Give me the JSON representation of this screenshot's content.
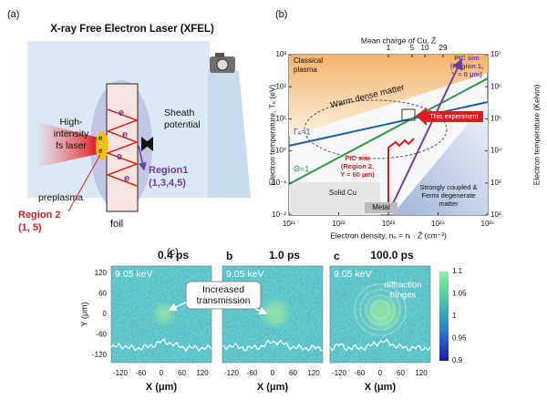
{
  "panel_a": {
    "label": "(a)",
    "title": "X-ray Free Electron Laser (XFEL)",
    "electron": "e",
    "laser": [
      "High-",
      "intensity",
      "fs laser"
    ],
    "sheath": [
      "Sheath",
      "potential"
    ],
    "region_1": [
      "Region1",
      "(1,3,4,5)"
    ],
    "preplasma": "preplasma",
    "region_2": [
      "Region 2",
      "(1, 5)"
    ],
    "foil": "foil"
  },
  "panel_b": {
    "label": "(b)",
    "top_axis_title": "Mean charge of Cu, Z̄",
    "top_ticks": [
      1,
      5,
      10,
      29
    ],
    "y_axis_title": "Electron temperature, Tₑ (eV)",
    "y_ticks": [
      "10³",
      "10²",
      "10¹",
      "10⁰",
      "10⁻¹",
      "10⁻²"
    ],
    "y2_axis_title": "Electron temperature (Kelvin)",
    "y2_ticks": [
      "10⁷",
      "10⁶",
      "10⁵",
      "10⁴",
      "10³",
      "10²"
    ],
    "x_axis_title": "Electron density, nₑ = nᵢ · Z̄ (cm⁻³)",
    "x_ticks": [
      "10²¹",
      "10²²",
      "10²³",
      "10²⁴",
      "10²⁵"
    ],
    "classical_plasma": [
      "Classical",
      "plasma"
    ],
    "warm_dense_matter": "Warm dense matter",
    "gamma_line": "Γₑ=1",
    "theta_line": "Θ=1",
    "pic_region_1": [
      "PIC sim",
      "(Region 1,",
      "Y = 0 μm)"
    ],
    "this_experiment": "This experiment",
    "pic_region_2": [
      "PIC sim",
      "(Region 2,",
      "Y = 60 μm)"
    ],
    "solid_cu": "Solid Cu",
    "metal": "Metal",
    "degenerate": [
      "Strongly coupled &",
      "Fermi degenerate",
      "matter"
    ]
  },
  "panel_c": {
    "label": "(c)",
    "letters": [
      "b",
      "c"
    ],
    "times": [
      "0.4 ps",
      "1.0 ps",
      "100.0 ps"
    ],
    "energy": "9.05 keV",
    "annotation": [
      "Increased",
      "transmission"
    ],
    "fringes": [
      "diffraction",
      "fringes"
    ],
    "y_title": "Y (μm)",
    "y_ticks": [
      120,
      60,
      0,
      -60,
      -120
    ],
    "x_title": "X (μm)",
    "x_ticks": [
      -120,
      -60,
      0,
      60,
      120
    ],
    "colorbar_ticks": [
      1.1,
      1.05,
      1,
      0.95,
      0.9
    ]
  }
}
